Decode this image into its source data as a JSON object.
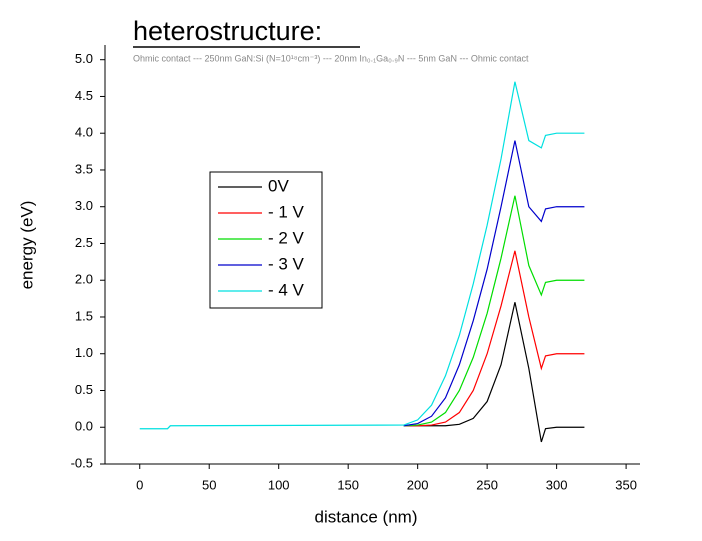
{
  "chart_data": {
    "type": "line",
    "title": "heterostructure:",
    "subtitle": "Ohmic contact --- 250nm GaN:Si (N=10¹⁸cm⁻³) --- 20nm In₀.₁Ga₀.₉N --- 5nm GaN --- Ohmic contact",
    "x_label": "distance (nm)",
    "y_label": "energy (eV)",
    "x": [
      0,
      20,
      22,
      190,
      200,
      210,
      220,
      230,
      240,
      250,
      260,
      270,
      280,
      289,
      292,
      300,
      320
    ],
    "series": [
      {
        "name": "0V",
        "color": "#000000",
        "values": [
          null,
          null,
          null,
          0.02,
          0.02,
          0.02,
          0.02,
          0.04,
          0.12,
          0.35,
          0.85,
          1.7,
          0.8,
          -0.2,
          -0.02,
          0,
          0
        ]
      },
      {
        "name": "- 1 V",
        "color": "#ff0000",
        "values": [
          null,
          null,
          null,
          0.02,
          0.02,
          0.03,
          0.07,
          0.2,
          0.5,
          1.0,
          1.65,
          2.4,
          1.5,
          0.8,
          0.97,
          1.0,
          1.0
        ]
      },
      {
        "name": "- 2 V",
        "color": "#00dd00",
        "values": [
          null,
          null,
          null,
          0.02,
          0.03,
          0.07,
          0.2,
          0.5,
          0.95,
          1.55,
          2.3,
          3.15,
          2.2,
          1.8,
          1.97,
          2.0,
          2.0
        ]
      },
      {
        "name": "- 3 V",
        "color": "#0000cc",
        "values": [
          null,
          null,
          null,
          0.02,
          0.05,
          0.15,
          0.4,
          0.85,
          1.45,
          2.15,
          3.0,
          3.9,
          3.0,
          2.8,
          2.97,
          3.0,
          3.0
        ]
      },
      {
        "name": "- 4 V",
        "color": "#00e0e0",
        "values": [
          -0.02,
          -0.02,
          0.02,
          0.03,
          0.1,
          0.3,
          0.7,
          1.25,
          1.95,
          2.75,
          3.65,
          4.7,
          3.9,
          3.8,
          3.97,
          4.0,
          4.0
        ]
      }
    ],
    "xlim": [
      -25,
      360
    ],
    "ylim": [
      -0.5,
      5.2
    ],
    "xticks": [
      0,
      50,
      100,
      150,
      200,
      250,
      300,
      350
    ],
    "yticks": [
      -0.5,
      {
        "value": 0,
        "label": "0.0"
      },
      0.5,
      {
        "value": 1,
        "label": "1.0"
      },
      1.5,
      {
        "value": 2,
        "label": "2.0"
      },
      2.5,
      {
        "value": 3,
        "label": "3.0"
      },
      3.5,
      {
        "value": 4,
        "label": "4.0"
      },
      4.5,
      {
        "value": 5,
        "label": "5.0"
      }
    ],
    "legend": "left"
  }
}
